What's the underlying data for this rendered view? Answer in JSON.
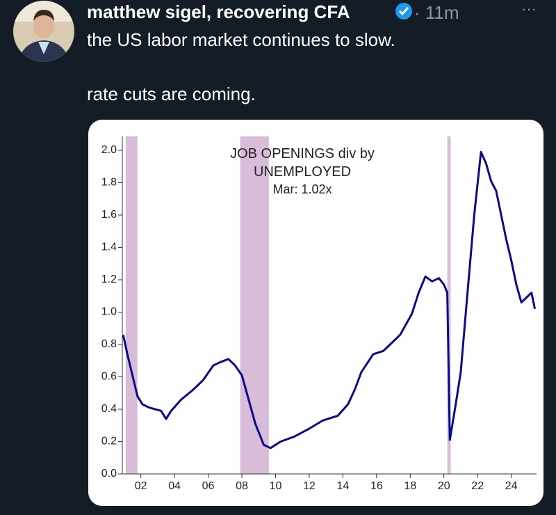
{
  "tweet": {
    "author": "matthew sigel, recovering CFA",
    "time": "· 11m",
    "menu": "···",
    "text_lines": [
      "the US labor market continues to slow.",
      "rate cuts are coming."
    ]
  },
  "chart_data": {
    "type": "line",
    "title": "JOB OPENINGS div by UNEMPLOYED",
    "subtitle": "Mar: 1.02x",
    "x": [
      2000.95,
      2001.2,
      2001.5,
      2001.8,
      2002.1,
      2002.5,
      2003.2,
      2003.5,
      2003.8,
      2004.4,
      2005.1,
      2005.7,
      2006.3,
      2006.7,
      2007.2,
      2007.6,
      2008.0,
      2008.4,
      2008.8,
      2009.3,
      2009.7,
      2010.3,
      2011.1,
      2012.0,
      2012.8,
      2013.7,
      2014.3,
      2014.7,
      2015.1,
      2015.8,
      2016.4,
      2016.8,
      2017.4,
      2018.1,
      2018.5,
      2018.9,
      2019.3,
      2019.7,
      2020.0,
      2020.2,
      2020.35,
      2020.7,
      2021.0,
      2021.4,
      2021.8,
      2022.2,
      2022.5,
      2022.8,
      2023.1,
      2023.4,
      2023.7,
      2024.0,
      2024.3,
      2024.6,
      2025.0,
      2025.2,
      2025.4
    ],
    "series": [
      {
        "color": "#0a0a8c",
        "values": [
          0.86,
          0.74,
          0.61,
          0.48,
          0.43,
          0.41,
          0.39,
          0.34,
          0.39,
          0.46,
          0.52,
          0.58,
          0.67,
          0.69,
          0.71,
          0.67,
          0.61,
          0.46,
          0.31,
          0.18,
          0.16,
          0.2,
          0.23,
          0.28,
          0.33,
          0.36,
          0.43,
          0.52,
          0.63,
          0.74,
          0.76,
          0.8,
          0.86,
          0.99,
          1.12,
          1.22,
          1.19,
          1.21,
          1.17,
          1.12,
          0.21,
          0.43,
          0.63,
          1.12,
          1.6,
          1.99,
          1.92,
          1.81,
          1.75,
          1.6,
          1.45,
          1.32,
          1.17,
          1.06,
          1.1,
          1.12,
          1.02
        ]
      }
    ],
    "recessions": [
      [
        2001.1,
        2001.8
      ],
      [
        2007.9,
        2009.6
      ],
      [
        2020.2,
        2020.4
      ]
    ],
    "recession_color": "#d8bcd8",
    "xlim": [
      2000.9,
      2025.5
    ],
    "ylim": [
      0,
      2.0
    ],
    "xticks": [
      {
        "value": 2002,
        "label": "02"
      },
      {
        "value": 2004,
        "label": "04"
      },
      {
        "value": 2006,
        "label": "06"
      },
      {
        "value": 2008,
        "label": "08"
      },
      {
        "value": 2010,
        "label": "10"
      },
      {
        "value": 2012,
        "label": "12"
      },
      {
        "value": 2014,
        "label": "14"
      },
      {
        "value": 2016,
        "label": "16"
      },
      {
        "value": 2018,
        "label": "18"
      },
      {
        "value": 2020,
        "label": "20"
      },
      {
        "value": 2022,
        "label": "22"
      },
      {
        "value": 2024,
        "label": "24"
      }
    ],
    "yticks": [
      {
        "value": 0,
        "label": "0.0"
      },
      0.2,
      0.4,
      0.6,
      0.8,
      {
        "value": 1,
        "label": "1.0"
      },
      1.2,
      1.4,
      1.6,
      1.8,
      {
        "value": 2,
        "label": "2.0"
      }
    ]
  }
}
